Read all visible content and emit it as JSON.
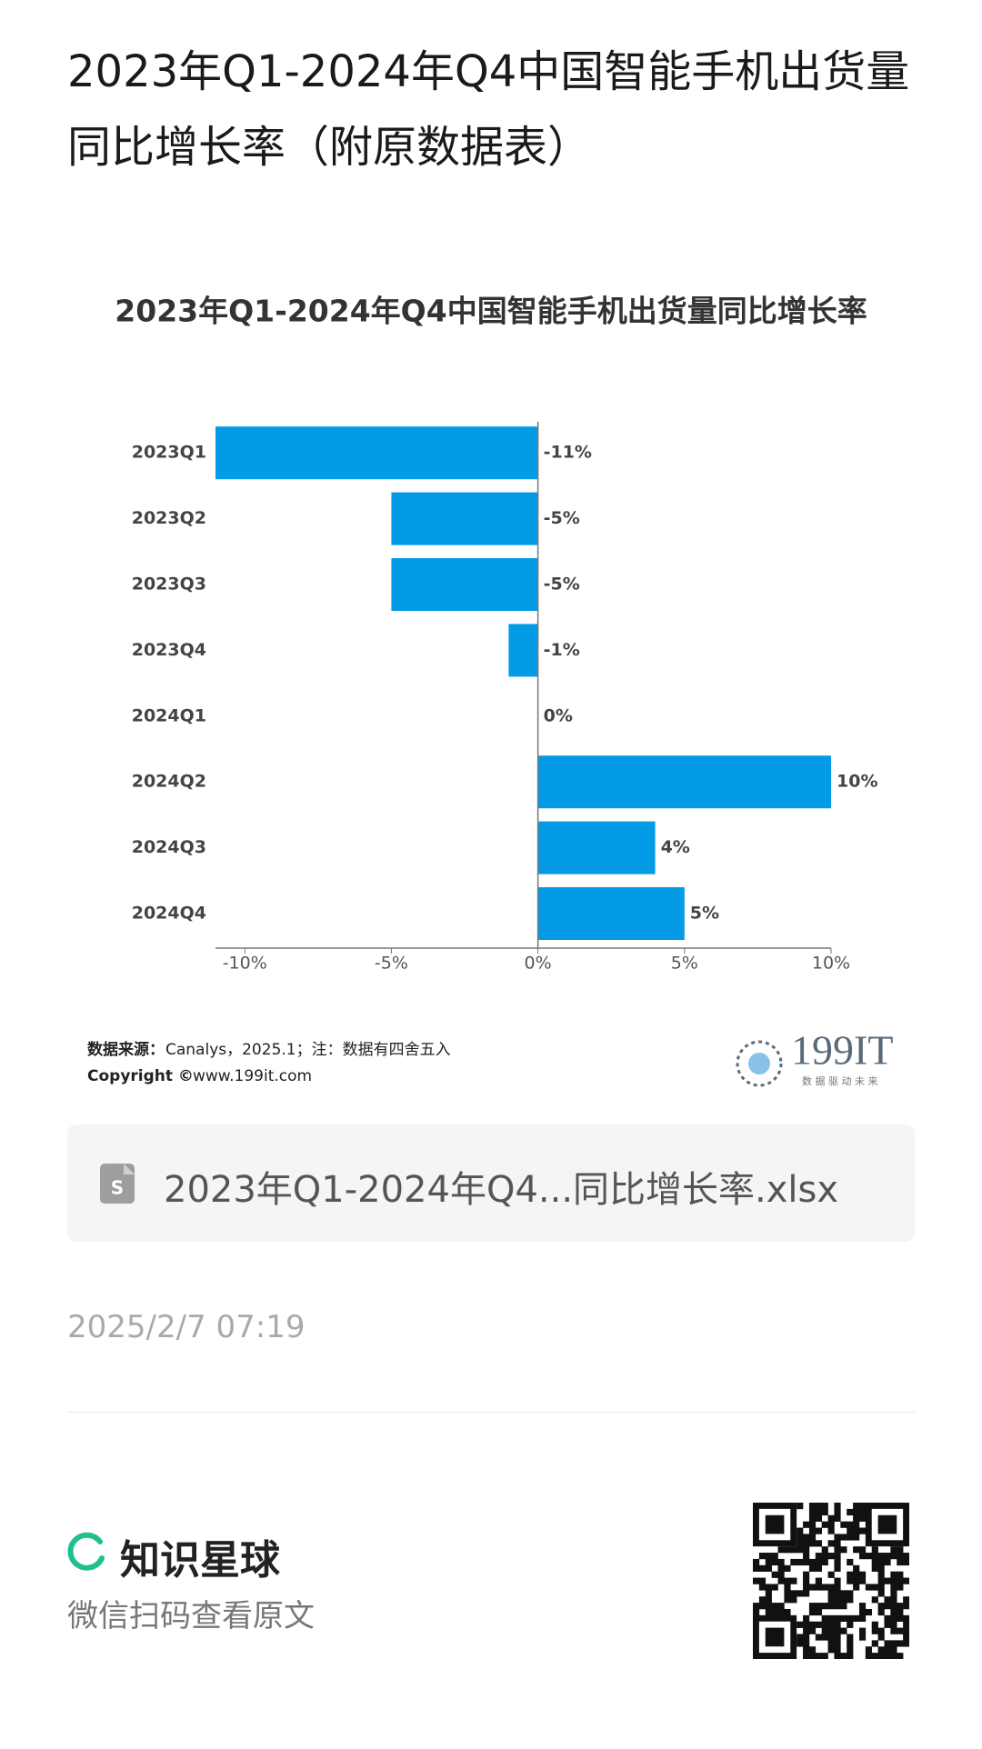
{
  "header": {
    "title": "2023年Q1-2024年Q4中国智能手机出货量同比增长率（附原数据表）"
  },
  "chart_data": {
    "type": "hbar",
    "title": "2023年Q1-2024年Q4中国智能手机出货量同比增长率",
    "categories": [
      "2023Q1",
      "2023Q2",
      "2023Q3",
      "2023Q4",
      "2024Q1",
      "2024Q2",
      "2024Q3",
      "2024Q4"
    ],
    "values": [
      -11,
      -5,
      -5,
      -1,
      0,
      10,
      4,
      5
    ],
    "value_labels": [
      "-11%",
      "-5%",
      "-5%",
      "-1%",
      "0%",
      "10%",
      "4%",
      "5%"
    ],
    "color": "#039be5",
    "xlim": [
      -11,
      10
    ],
    "xticks": [
      {
        "value": -10,
        "label": "-10%"
      },
      {
        "value": -5,
        "label": "-5%"
      },
      {
        "value": 0,
        "label": "0%"
      },
      {
        "value": 5,
        "label": "5%"
      },
      {
        "value": 10,
        "label": "10%"
      }
    ]
  },
  "footer": {
    "source_label": "数据来源：",
    "source_text": "Canalys，2025.1；注：数据有四舍五入",
    "copyright_label": "Copyright ©",
    "copyright_text": "www.199it.com",
    "logo": "199IT",
    "logo_slogan": "数 据 驱 动 未 来"
  },
  "attachment": {
    "file_name": "2023年Q1-2024年Q4...同比增长率.xlsx"
  },
  "date": "2025/2/7 07:19",
  "brand": {
    "name": "知识星球",
    "hint": "微信扫码查看原文"
  }
}
